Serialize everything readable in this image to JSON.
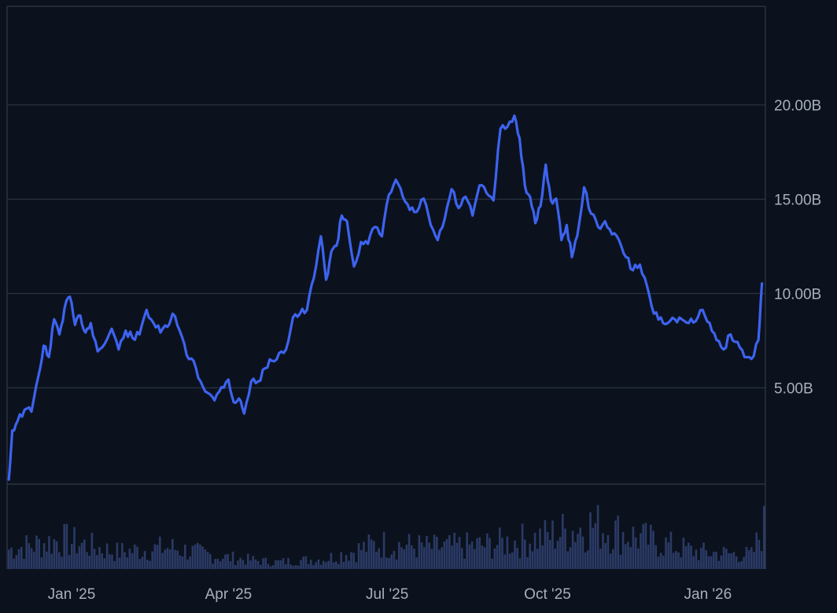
{
  "colors": {
    "background": "#0b121d",
    "grid": "#2a3342",
    "frame": "#3a4352",
    "line": "#3d63f0",
    "volume": "#2b3a66",
    "axis_text": "#a8b0bd"
  },
  "chart_data": [
    {
      "type": "line",
      "title": "",
      "xlabel": "",
      "ylabel": "",
      "y_axis_position": "right",
      "grid": true,
      "ylim": [
        -0.1,
        25.2
      ],
      "xlim": [
        "2024-11-25",
        "2026-02-03"
      ],
      "yticks": [
        5,
        10,
        15,
        20
      ],
      "ytick_labels": [
        "5.00B",
        "10.00B",
        "15.00B",
        "20.00B"
      ],
      "xticks": [
        "2025-01-01",
        "2025-04-01",
        "2025-07-01",
        "2025-10-01",
        "2026-01-01"
      ],
      "xtick_labels": [
        "Jan '25",
        "Apr '25",
        "Jul '25",
        "Oct '25",
        "Jan '26"
      ],
      "series": [
        {
          "unit": "B",
          "x": [
            "2024-11-26",
            "2024-11-28",
            "2024-12-01",
            "2024-12-05",
            "2024-12-09",
            "2024-12-13",
            "2024-12-16",
            "2024-12-19",
            "2024-12-22",
            "2024-12-25",
            "2024-12-28",
            "2024-12-31",
            "2025-01-03",
            "2025-01-06",
            "2025-01-09",
            "2025-01-12",
            "2025-01-16",
            "2025-01-20",
            "2025-01-24",
            "2025-01-28",
            "2025-02-01",
            "2025-02-05",
            "2025-02-09",
            "2025-02-13",
            "2025-02-17",
            "2025-02-21",
            "2025-02-25",
            "2025-02-28",
            "2025-03-04",
            "2025-03-08",
            "2025-03-12",
            "2025-03-16",
            "2025-03-20",
            "2025-03-24",
            "2025-03-28",
            "2025-04-01",
            "2025-04-04",
            "2025-04-07",
            "2025-04-10",
            "2025-04-14",
            "2025-04-18",
            "2025-04-22",
            "2025-04-26",
            "2025-04-30",
            "2025-05-04",
            "2025-05-08",
            "2025-05-12",
            "2025-05-16",
            "2025-05-20",
            "2025-05-24",
            "2025-05-27",
            "2025-05-30",
            "2025-06-02",
            "2025-06-05",
            "2025-06-08",
            "2025-06-12",
            "2025-06-16",
            "2025-06-20",
            "2025-06-24",
            "2025-06-28",
            "2025-07-02",
            "2025-07-06",
            "2025-07-10",
            "2025-07-14",
            "2025-07-18",
            "2025-07-22",
            "2025-07-26",
            "2025-07-30",
            "2025-08-03",
            "2025-08-07",
            "2025-08-11",
            "2025-08-15",
            "2025-08-19",
            "2025-08-23",
            "2025-08-27",
            "2025-08-31",
            "2025-09-04",
            "2025-09-08",
            "2025-09-12",
            "2025-09-15",
            "2025-09-18",
            "2025-09-21",
            "2025-09-24",
            "2025-09-27",
            "2025-09-30",
            "2025-10-03",
            "2025-10-06",
            "2025-10-09",
            "2025-10-12",
            "2025-10-15",
            "2025-10-18",
            "2025-10-22",
            "2025-10-26",
            "2025-10-30",
            "2025-11-03",
            "2025-11-07",
            "2025-11-11",
            "2025-11-15",
            "2025-11-19",
            "2025-11-23",
            "2025-11-27",
            "2025-12-01",
            "2025-12-05",
            "2025-12-09",
            "2025-12-13",
            "2025-12-17",
            "2025-12-21",
            "2025-12-25",
            "2025-12-29",
            "2026-01-02",
            "2026-01-06",
            "2026-01-10",
            "2026-01-14",
            "2026-01-18",
            "2026-01-22",
            "2026-01-26",
            "2026-01-30",
            "2026-02-01"
          ],
          "values": [
            0.1,
            2.7,
            3.2,
            3.8,
            3.7,
            5.6,
            7.2,
            6.6,
            8.6,
            7.8,
            9.2,
            9.8,
            8.3,
            8.8,
            7.9,
            8.4,
            6.9,
            7.3,
            8.1,
            7.0,
            8.0,
            7.6,
            7.8,
            9.1,
            8.4,
            7.9,
            8.2,
            8.9,
            8.0,
            6.7,
            6.4,
            5.3,
            4.7,
            4.3,
            5.0,
            5.4,
            4.2,
            4.4,
            3.6,
            5.3,
            5.3,
            6.0,
            6.4,
            6.8,
            7.0,
            8.7,
            8.9,
            9.1,
            10.8,
            13.0,
            10.7,
            12.2,
            12.5,
            14.1,
            13.8,
            11.4,
            12.7,
            12.6,
            13.5,
            13.0,
            15.2,
            16.0,
            15.1,
            14.4,
            14.3,
            15.0,
            13.6,
            12.8,
            13.9,
            15.5,
            14.5,
            15.1,
            14.1,
            15.7,
            15.3,
            14.9,
            18.7,
            18.8,
            19.4,
            18.2,
            15.7,
            15.1,
            13.7,
            14.6,
            16.8,
            14.9,
            15.0,
            12.8,
            13.6,
            11.9,
            13.0,
            15.6,
            14.2,
            13.5,
            13.8,
            13.1,
            12.8,
            11.9,
            11.2,
            11.5,
            10.4,
            8.9,
            8.7,
            8.4,
            8.6,
            8.6,
            8.4,
            8.5,
            9.1,
            8.4,
            7.5,
            7.0,
            7.8,
            7.4,
            6.6,
            6.5,
            7.5,
            10.5
          ]
        }
      ]
    },
    {
      "type": "bar",
      "title": "",
      "xlabel": "",
      "ylabel": "",
      "ylim": [
        0,
        1
      ],
      "x": [
        "2024-11-26",
        "2024-12-26",
        "2025-01-26",
        "2025-02-26",
        "2025-03-26",
        "2025-04-26",
        "2025-05-26",
        "2025-06-26",
        "2025-07-26",
        "2025-08-26",
        "2025-09-26",
        "2025-10-26",
        "2025-11-26",
        "2025-12-26",
        "2026-01-26",
        "2026-02-01"
      ],
      "values": [
        0.35,
        0.52,
        0.3,
        0.38,
        0.22,
        0.12,
        0.18,
        0.45,
        0.38,
        0.42,
        0.55,
        0.78,
        0.52,
        0.3,
        0.25,
        0.75
      ]
    }
  ]
}
